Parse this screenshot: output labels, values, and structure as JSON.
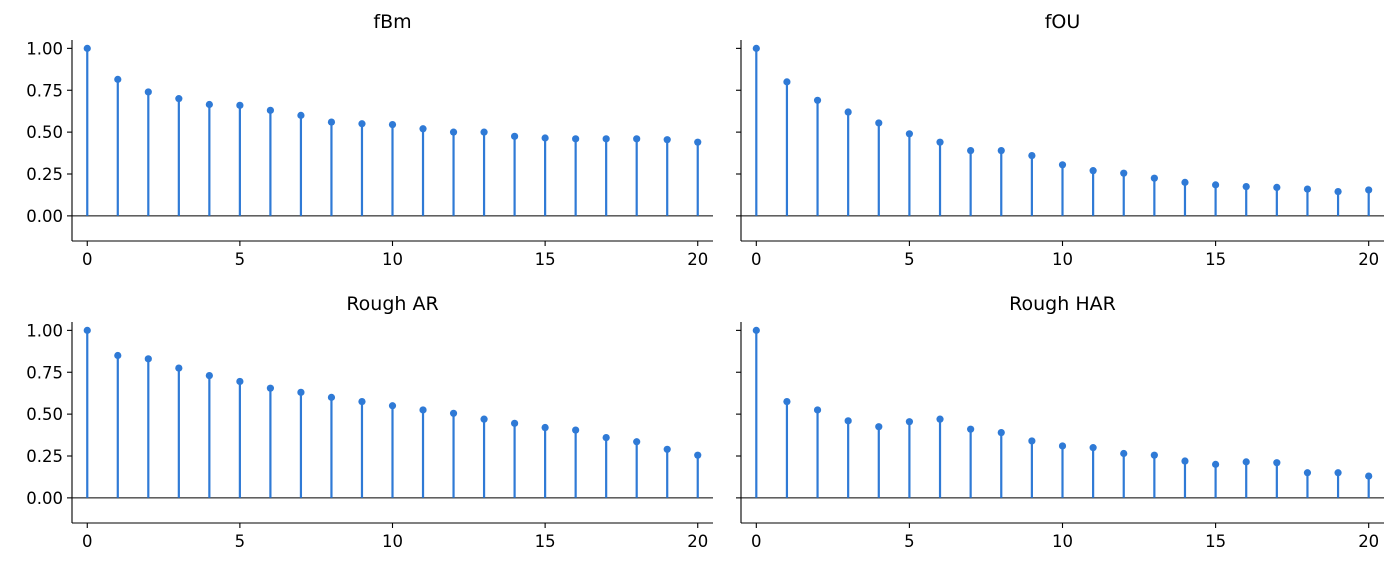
{
  "chart_data": [
    {
      "type": "stem",
      "title": "fBm",
      "x": [
        0,
        1,
        2,
        3,
        4,
        5,
        6,
        7,
        8,
        9,
        10,
        11,
        12,
        13,
        14,
        15,
        16,
        17,
        18,
        19,
        20
      ],
      "values": [
        1.0,
        0.815,
        0.74,
        0.7,
        0.665,
        0.66,
        0.63,
        0.6,
        0.56,
        0.55,
        0.545,
        0.52,
        0.5,
        0.5,
        0.475,
        0.465,
        0.46,
        0.46,
        0.46,
        0.455,
        0.44
      ],
      "color": "#2f7ad6",
      "xlim": [
        -0.5,
        20.5
      ],
      "ylim": [
        -0.15,
        1.05
      ],
      "xticks": [
        0,
        5,
        10,
        15,
        20
      ],
      "yticks": [
        0.0,
        0.25,
        0.5,
        0.75,
        1.0
      ],
      "yticklabels": [
        "0.00",
        "0.25",
        "0.50",
        "0.75",
        "1.00"
      ]
    },
    {
      "type": "stem",
      "title": "fOU",
      "x": [
        0,
        1,
        2,
        3,
        4,
        5,
        6,
        7,
        8,
        9,
        10,
        11,
        12,
        13,
        14,
        15,
        16,
        17,
        18,
        19,
        20
      ],
      "values": [
        1.0,
        0.8,
        0.69,
        0.62,
        0.555,
        0.49,
        0.44,
        0.39,
        0.39,
        0.36,
        0.305,
        0.27,
        0.255,
        0.225,
        0.2,
        0.185,
        0.175,
        0.17,
        0.16,
        0.145,
        0.155
      ],
      "color": "#2f7ad6",
      "xlim": [
        -0.5,
        20.5
      ],
      "ylim": [
        -0.15,
        1.05
      ],
      "xticks": [
        0,
        5,
        10,
        15,
        20
      ],
      "yticks": [
        0.0,
        0.25,
        0.5,
        0.75,
        1.0
      ],
      "yticklabels": []
    },
    {
      "type": "stem",
      "title": "Rough AR",
      "x": [
        0,
        1,
        2,
        3,
        4,
        5,
        6,
        7,
        8,
        9,
        10,
        11,
        12,
        13,
        14,
        15,
        16,
        17,
        18,
        19,
        20
      ],
      "values": [
        1.0,
        0.85,
        0.83,
        0.775,
        0.73,
        0.695,
        0.655,
        0.63,
        0.6,
        0.575,
        0.55,
        0.525,
        0.505,
        0.47,
        0.445,
        0.42,
        0.405,
        0.36,
        0.335,
        0.29,
        0.255
      ],
      "color": "#2f7ad6",
      "xlim": [
        -0.5,
        20.5
      ],
      "ylim": [
        -0.15,
        1.05
      ],
      "xticks": [
        0,
        5,
        10,
        15,
        20
      ],
      "yticks": [
        0.0,
        0.25,
        0.5,
        0.75,
        1.0
      ],
      "yticklabels": [
        "0.00",
        "0.25",
        "0.50",
        "0.75",
        "1.00"
      ]
    },
    {
      "type": "stem",
      "title": "Rough HAR",
      "x": [
        0,
        1,
        2,
        3,
        4,
        5,
        6,
        7,
        8,
        9,
        10,
        11,
        12,
        13,
        14,
        15,
        16,
        17,
        18,
        19,
        20
      ],
      "values": [
        1.0,
        0.575,
        0.525,
        0.46,
        0.425,
        0.455,
        0.47,
        0.41,
        0.39,
        0.34,
        0.31,
        0.3,
        0.265,
        0.255,
        0.22,
        0.2,
        0.215,
        0.21,
        0.15,
        0.15,
        0.13
      ],
      "color": "#2f7ad6",
      "xlim": [
        -0.5,
        20.5
      ],
      "ylim": [
        -0.15,
        1.05
      ],
      "xticks": [
        0,
        5,
        10,
        15,
        20
      ],
      "yticks": [
        0.0,
        0.25,
        0.5,
        0.75,
        1.0
      ],
      "yticklabels": []
    }
  ]
}
